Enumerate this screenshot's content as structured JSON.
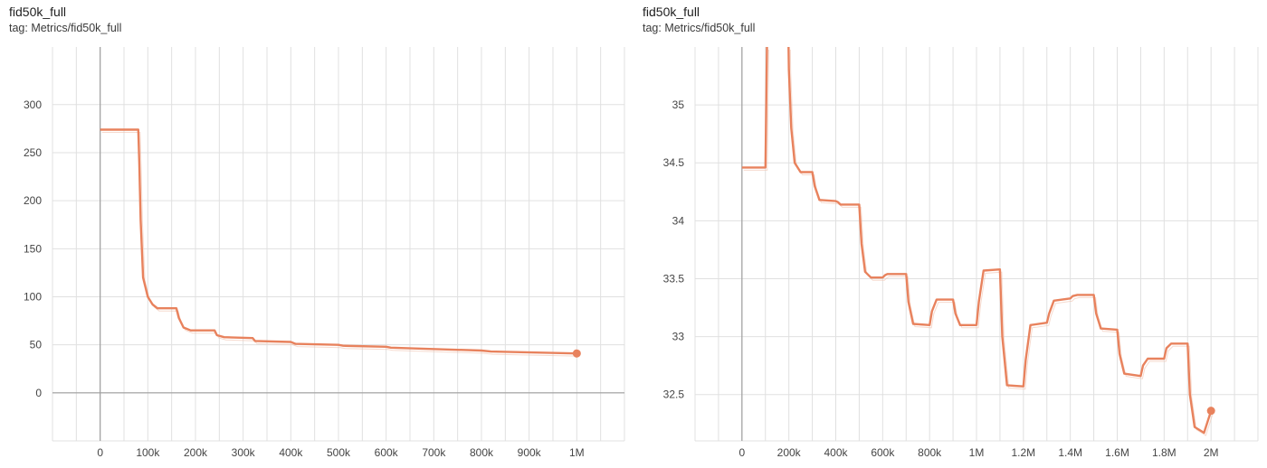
{
  "colors": {
    "series": "#e8825d",
    "series_faint": "#f0c2ae",
    "grid": "#e0e0e0",
    "axis": "#9e9e9e"
  },
  "chart_data": [
    {
      "type": "line",
      "title": "fid50k_full",
      "subtitle": "tag: Metrics/fid50k_full",
      "xlim": [
        -100000,
        1100000
      ],
      "ylim": [
        -50,
        360
      ],
      "xticks": [
        0,
        100000,
        200000,
        300000,
        400000,
        500000,
        600000,
        700000,
        800000,
        900000,
        1000000
      ],
      "xtick_labels": [
        "0",
        "100k",
        "200k",
        "300k",
        "400k",
        "500k",
        "600k",
        "700k",
        "800k",
        "900k",
        "1M"
      ],
      "yticks": [
        0,
        50,
        100,
        150,
        200,
        250,
        300
      ],
      "ytick_labels": [
        "0",
        "50",
        "100",
        "150",
        "200",
        "250",
        "300"
      ],
      "grid": true,
      "series": [
        {
          "x": [
            0,
            80000,
            82000,
            85000,
            90000,
            100000,
            110000,
            120000,
            160000,
            165000,
            175000,
            190000,
            240000,
            245000,
            260000,
            320000,
            325000,
            400000,
            410000,
            500000,
            510000,
            600000,
            610000,
            800000,
            820000,
            1000000
          ],
          "y": [
            274,
            274,
            240,
            180,
            120,
            100,
            92,
            88,
            88,
            78,
            68,
            65,
            65,
            60,
            58,
            57,
            54,
            53,
            51,
            50,
            49,
            48,
            47,
            44,
            43,
            41
          ]
        }
      ]
    },
    {
      "type": "line",
      "title": "fid50k_full",
      "subtitle": "tag: Metrics/fid50k_full",
      "xlim": [
        -200000,
        2200000
      ],
      "ylim": [
        32.1,
        35.5
      ],
      "xticks": [
        0,
        200000,
        400000,
        600000,
        800000,
        1000000,
        1200000,
        1400000,
        1600000,
        1800000,
        2000000
      ],
      "xtick_labels": [
        "0",
        "200k",
        "400k",
        "600k",
        "800k",
        "1M",
        "1.2M",
        "1.4M",
        "1.6M",
        "1.8M",
        "2M"
      ],
      "yticks": [
        32.5,
        33,
        33.5,
        34,
        34.5,
        35
      ],
      "ytick_labels": [
        "32.5",
        "33",
        "33.5",
        "34",
        "34.5",
        "35"
      ],
      "grid": true,
      "series": [
        {
          "x": [
            0,
            100000,
            105000,
            110000,
            195000,
            200000,
            210000,
            225000,
            250000,
            300000,
            310000,
            330000,
            400000,
            410000,
            420000,
            500000,
            510000,
            525000,
            550000,
            600000,
            610000,
            620000,
            700000,
            710000,
            730000,
            800000,
            810000,
            830000,
            900000,
            910000,
            930000,
            1000000,
            1010000,
            1030000,
            1100000,
            1110000,
            1130000,
            1200000,
            1210000,
            1230000,
            1300000,
            1310000,
            1330000,
            1400000,
            1410000,
            1430000,
            1500000,
            1510000,
            1530000,
            1600000,
            1610000,
            1630000,
            1700000,
            1710000,
            1730000,
            1800000,
            1810000,
            1830000,
            1900000,
            1910000,
            1930000,
            1970000,
            2000000
          ],
          "y": [
            34.46,
            34.46,
            35.2,
            36.0,
            36.0,
            35.3,
            34.8,
            34.5,
            34.42,
            34.42,
            34.3,
            34.18,
            34.17,
            34.16,
            34.14,
            34.14,
            33.8,
            33.56,
            33.51,
            33.51,
            33.53,
            33.54,
            33.54,
            33.3,
            33.11,
            33.1,
            33.22,
            33.32,
            33.32,
            33.2,
            33.1,
            33.1,
            33.3,
            33.57,
            33.58,
            33.0,
            32.58,
            32.57,
            32.8,
            33.1,
            33.12,
            33.2,
            33.31,
            33.33,
            33.35,
            33.36,
            33.36,
            33.2,
            33.07,
            33.06,
            32.85,
            32.68,
            32.66,
            32.75,
            32.81,
            32.81,
            32.9,
            32.94,
            32.94,
            32.5,
            32.22,
            32.17,
            32.36
          ]
        }
      ]
    }
  ]
}
